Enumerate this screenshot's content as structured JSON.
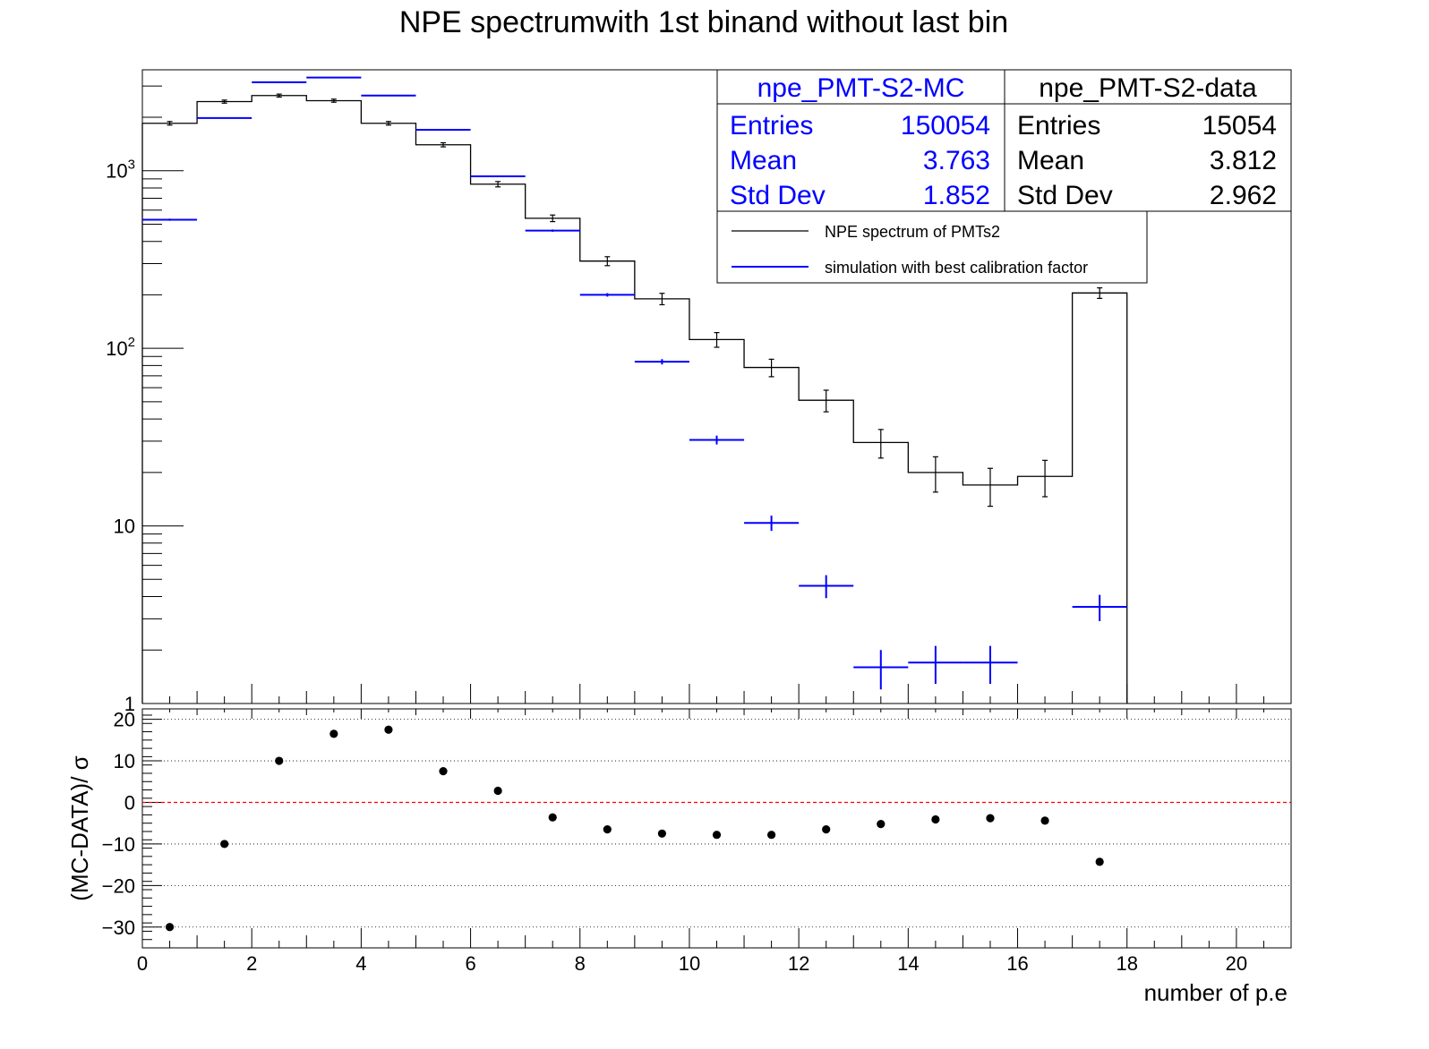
{
  "title": "NPE spectrumwith 1st binand without last bin",
  "stats": {
    "mc": {
      "name": "npe_PMT-S2-MC",
      "color": "#0000ff",
      "rows": [
        {
          "label": "Entries",
          "value": "150054"
        },
        {
          "label": "Mean",
          "value": "3.763"
        },
        {
          "label": "Std Dev",
          "value": "1.852"
        }
      ]
    },
    "data": {
      "name": "npe_PMT-S2-data",
      "color": "#000000",
      "rows": [
        {
          "label": "Entries",
          "value": "15054"
        },
        {
          "label": "Mean",
          "value": "3.812"
        },
        {
          "label": "Std Dev",
          "value": "2.962"
        }
      ]
    }
  },
  "legend": [
    {
      "label": "NPE spectrum of PMTs2",
      "color": "#000000"
    },
    {
      "label": "simulation with best calibration factor",
      "color": "#0000ff"
    }
  ],
  "chart_data": [
    {
      "type": "histogram",
      "title": "NPE spectrumwith 1st binand without last bin",
      "yscale": "log",
      "xlim": [
        0,
        21
      ],
      "ylim": [
        1,
        3700
      ],
      "y_tick_labels": [
        "1",
        "10",
        "10^2",
        "10^3"
      ],
      "bin_edges": [
        0,
        1,
        2,
        3,
        4,
        5,
        6,
        7,
        8,
        9,
        10,
        11,
        12,
        13,
        14,
        15,
        16,
        17,
        18
      ],
      "series": [
        {
          "name": "NPE spectrum of PMTs2",
          "color": "#000000",
          "style": "step-with-errors",
          "values": [
            1850,
            2450,
            2650,
            2480,
            1850,
            1400,
            840,
            540,
            310,
            190,
            112,
            78,
            51,
            29.5,
            20,
            17,
            19,
            205
          ],
          "errors": [
            43,
            49,
            51,
            50,
            43,
            37,
            29,
            23,
            18,
            14,
            10.6,
            8.8,
            7.1,
            5.4,
            4.5,
            4.1,
            4.4,
            14
          ]
        },
        {
          "name": "simulation with best calibration factor",
          "color": "#0000ff",
          "style": "crosses",
          "values": [
            530,
            1980,
            3150,
            3350,
            2650,
            1700,
            930,
            460,
            200,
            84,
            30.5,
            10.4,
            4.6,
            1.6,
            1.7,
            1.7,
            0,
            3.5
          ],
          "errors": [
            7.3,
            14,
            18,
            18,
            16,
            13,
            9.6,
            6.8,
            4.5,
            2.9,
            1.75,
            1.02,
            0.68,
            0.4,
            0.41,
            0.41,
            0,
            0.59
          ]
        }
      ]
    },
    {
      "type": "scatter",
      "ylabel": "(MC-DATA)/ σ",
      "xlabel": "number of p.e",
      "xlim": [
        0,
        21
      ],
      "ylim": [
        -35,
        22.5
      ],
      "x_ticks": [
        0,
        2,
        4,
        6,
        8,
        10,
        12,
        14,
        16,
        18,
        20
      ],
      "y_ticks": [
        20,
        10,
        0,
        -10,
        -20,
        -30
      ],
      "y_tick_labels": [
        "20",
        "10",
        "0",
        "−10",
        "−20",
        "−30"
      ],
      "grid": true,
      "reference_line": {
        "y": 0,
        "color": "#ff0000"
      },
      "x": [
        0.5,
        1.5,
        2.5,
        3.5,
        4.5,
        5.5,
        6.5,
        7.5,
        8.5,
        9.5,
        10.5,
        11.5,
        12.5,
        13.5,
        14.5,
        15.5,
        16.5,
        17.5
      ],
      "y": [
        -30,
        -10,
        10,
        16.5,
        17.5,
        7.5,
        2.8,
        -3.6,
        -6.5,
        -7.5,
        -7.8,
        -7.8,
        -6.5,
        -5.2,
        -4.1,
        -3.8,
        -4.4,
        -14.3
      ]
    }
  ]
}
